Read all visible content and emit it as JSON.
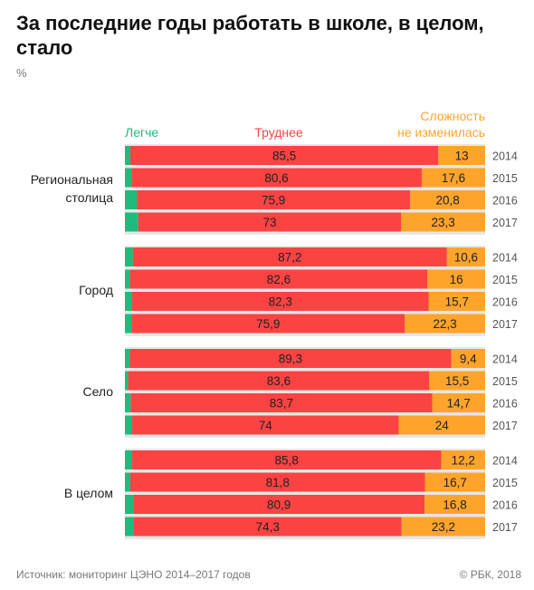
{
  "title": "За последние годы работать в школе, в целом, стало",
  "unit": "%",
  "source": "Источник: мониторинг ЦЭНО 2014–2017 годов",
  "copyright": "© РБК, 2018",
  "colors": {
    "easier": "#1ebc7c",
    "harder": "#fb4343",
    "same": "#ffa42b",
    "grid": "#e6e6e6"
  },
  "chart_data": {
    "type": "bar",
    "orientation": "horizontal",
    "stacked": true,
    "normalized": true,
    "legend": [
      {
        "key": "easier",
        "lines": [
          "Легче"
        ]
      },
      {
        "key": "harder",
        "lines": [
          "Труднее"
        ]
      },
      {
        "key": "same",
        "lines": [
          "Сложность",
          "не изменилась"
        ]
      }
    ],
    "groups": [
      {
        "label": [
          "Региональная",
          "столица"
        ],
        "rows": [
          {
            "year": "2014",
            "easier": 1.5,
            "harder": 85.5,
            "same": 13
          },
          {
            "year": "2015",
            "easier": 1.8,
            "harder": 80.6,
            "same": 17.6
          },
          {
            "year": "2016",
            "easier": 3.3,
            "harder": 75.9,
            "same": 20.8
          },
          {
            "year": "2017",
            "easier": 3.7,
            "harder": 73,
            "same": 23.3
          }
        ]
      },
      {
        "label": [
          "Город"
        ],
        "rows": [
          {
            "year": "2014",
            "easier": 2.2,
            "harder": 87.2,
            "same": 10.6
          },
          {
            "year": "2015",
            "easier": 1.4,
            "harder": 82.6,
            "same": 16
          },
          {
            "year": "2016",
            "easier": 2,
            "harder": 82.3,
            "same": 15.7
          },
          {
            "year": "2017",
            "easier": 1.8,
            "harder": 75.9,
            "same": 22.3
          }
        ]
      },
      {
        "label": [
          "Село"
        ],
        "rows": [
          {
            "year": "2014",
            "easier": 1.3,
            "harder": 89.3,
            "same": 9.4
          },
          {
            "year": "2015",
            "easier": 0.9,
            "harder": 83.6,
            "same": 15.5
          },
          {
            "year": "2016",
            "easier": 1.6,
            "harder": 83.7,
            "same": 14.7
          },
          {
            "year": "2017",
            "easier": 2,
            "harder": 74,
            "same": 24
          }
        ]
      },
      {
        "label": [
          "В целом"
        ],
        "rows": [
          {
            "year": "2014",
            "easier": 2,
            "harder": 85.8,
            "same": 12.2
          },
          {
            "year": "2015",
            "easier": 1.5,
            "harder": 81.8,
            "same": 16.7
          },
          {
            "year": "2016",
            "easier": 2.3,
            "harder": 80.9,
            "same": 16.8
          },
          {
            "year": "2017",
            "easier": 2.5,
            "harder": 74.3,
            "same": 23.2
          }
        ]
      }
    ]
  }
}
